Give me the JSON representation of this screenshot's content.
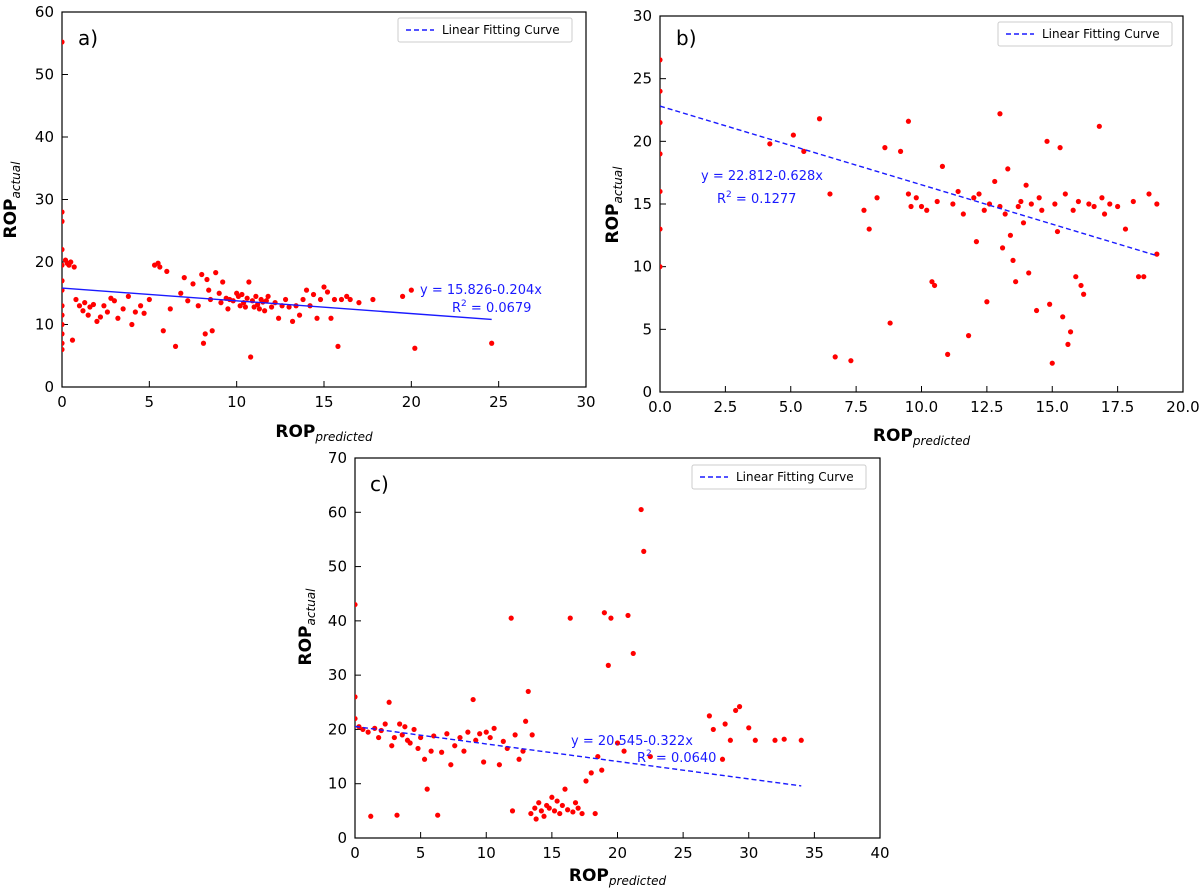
{
  "chart_data": [
    {
      "panel": "a)",
      "type": "scatter",
      "xlabel": "ROP",
      "xlabel_sub": "predicted",
      "ylabel": "ROP",
      "ylabel_sub": "actual",
      "xlim": [
        0,
        30
      ],
      "ylim": [
        0,
        60
      ],
      "xticks": [
        0,
        5,
        10,
        15,
        20,
        25,
        30
      ],
      "yticks": [
        0,
        10,
        20,
        30,
        40,
        50,
        60
      ],
      "legend": "Linear Fitting Curve",
      "equation": "y = 15.826-0.204x",
      "r2_label": "R",
      "r2_value": " = 0.0679",
      "fit": {
        "intercept": 15.826,
        "slope": -0.204,
        "x_end": 24.6
      },
      "colors": {
        "points": "#ff0000",
        "line": "#1a1aff"
      },
      "points": [
        [
          0,
          55.2
        ],
        [
          0,
          28
        ],
        [
          0,
          26.5
        ],
        [
          0,
          22
        ],
        [
          0,
          19.5
        ],
        [
          0,
          17
        ],
        [
          0,
          15.5
        ],
        [
          0,
          13
        ],
        [
          0,
          11.5
        ],
        [
          0,
          10
        ],
        [
          0,
          8.5
        ],
        [
          0,
          7
        ],
        [
          0,
          6
        ],
        [
          0.2,
          20.3
        ],
        [
          0.3,
          19.8
        ],
        [
          0.4,
          19.5
        ],
        [
          0.5,
          20
        ],
        [
          0.7,
          19.2
        ],
        [
          0.6,
          7.5
        ],
        [
          0.8,
          14
        ],
        [
          1,
          13
        ],
        [
          1.2,
          12.2
        ],
        [
          1.3,
          13.5
        ],
        [
          1.5,
          11.5
        ],
        [
          1.6,
          12.8
        ],
        [
          1.8,
          13.2
        ],
        [
          2,
          10.5
        ],
        [
          2.2,
          11.2
        ],
        [
          2.4,
          13
        ],
        [
          2.6,
          12
        ],
        [
          2.8,
          14.2
        ],
        [
          3,
          13.8
        ],
        [
          3.2,
          11
        ],
        [
          3.5,
          12.5
        ],
        [
          3.8,
          14.5
        ],
        [
          4,
          10
        ],
        [
          4.2,
          12
        ],
        [
          4.5,
          13
        ],
        [
          4.7,
          11.8
        ],
        [
          5,
          14
        ],
        [
          5.3,
          19.5
        ],
        [
          5.5,
          19.8
        ],
        [
          5.6,
          19.2
        ],
        [
          5.8,
          9
        ],
        [
          6,
          18.5
        ],
        [
          6.2,
          12.5
        ],
        [
          6.5,
          6.5
        ],
        [
          6.8,
          15
        ],
        [
          7,
          17.5
        ],
        [
          7.2,
          13.8
        ],
        [
          7.5,
          16.5
        ],
        [
          7.8,
          13
        ],
        [
          8,
          18
        ],
        [
          8.1,
          7
        ],
        [
          8.2,
          8.5
        ],
        [
          8.3,
          17.2
        ],
        [
          8.4,
          15.5
        ],
        [
          8.5,
          14
        ],
        [
          8.6,
          9
        ],
        [
          8.8,
          18.3
        ],
        [
          9,
          15
        ],
        [
          9.1,
          13.5
        ],
        [
          9.2,
          16.8
        ],
        [
          9.4,
          14.2
        ],
        [
          9.5,
          12.5
        ],
        [
          9.6,
          14
        ],
        [
          9.8,
          13.8
        ],
        [
          10,
          15
        ],
        [
          10.1,
          14.5
        ],
        [
          10.2,
          13
        ],
        [
          10.3,
          14.8
        ],
        [
          10.4,
          13.5
        ],
        [
          10.5,
          12.8
        ],
        [
          10.6,
          14.2
        ],
        [
          10.7,
          16.8
        ],
        [
          10.8,
          4.8
        ],
        [
          10.9,
          13.8
        ],
        [
          11,
          12.8
        ],
        [
          11.1,
          14.5
        ],
        [
          11.2,
          13.2
        ],
        [
          11.3,
          12.5
        ],
        [
          11.4,
          14
        ],
        [
          11.5,
          13.6
        ],
        [
          11.6,
          12.2
        ],
        [
          11.7,
          13.8
        ],
        [
          11.8,
          14.5
        ],
        [
          12,
          12.8
        ],
        [
          12.2,
          13.5
        ],
        [
          12.4,
          11
        ],
        [
          12.6,
          13
        ],
        [
          12.8,
          14
        ],
        [
          13,
          12.8
        ],
        [
          13.2,
          10.5
        ],
        [
          13.4,
          13
        ],
        [
          13.6,
          11.5
        ],
        [
          13.8,
          14
        ],
        [
          14,
          15.5
        ],
        [
          14.2,
          13
        ],
        [
          14.4,
          14.8
        ],
        [
          14.6,
          11
        ],
        [
          14.8,
          14
        ],
        [
          15,
          16
        ],
        [
          15.2,
          15.2
        ],
        [
          15.4,
          11
        ],
        [
          15.6,
          14
        ],
        [
          15.8,
          6.5
        ],
        [
          16,
          14
        ],
        [
          16.3,
          14.5
        ],
        [
          16.5,
          14
        ],
        [
          17,
          13.5
        ],
        [
          17.8,
          14
        ],
        [
          19.5,
          14.5
        ],
        [
          20,
          15.5
        ],
        [
          20.2,
          6.2
        ],
        [
          24.6,
          7
        ]
      ]
    },
    {
      "panel": "b)",
      "type": "scatter",
      "xlabel": "ROP",
      "xlabel_sub": "predicted",
      "ylabel": "ROP",
      "ylabel_sub": "actual",
      "xlim": [
        0,
        20
      ],
      "ylim": [
        0,
        30
      ],
      "xticks": [
        0,
        2.5,
        5,
        7.5,
        10,
        12.5,
        15,
        17.5,
        20
      ],
      "xtick_labels": [
        "0.0",
        "2.5",
        "5.0",
        "7.5",
        "10.0",
        "12.5",
        "15.0",
        "17.5",
        "20.0"
      ],
      "yticks": [
        0,
        5,
        10,
        15,
        20,
        25,
        30
      ],
      "legend": "Linear Fitting Curve",
      "equation": "y = 22.812-0.628x",
      "r2_label": "R",
      "r2_value": " = 0.1277",
      "fit": {
        "intercept": 22.812,
        "slope": -0.628,
        "x_end": 19
      },
      "colors": {
        "points": "#ff0000",
        "line": "#1a1aff"
      },
      "points": [
        [
          0,
          26.5
        ],
        [
          0,
          24
        ],
        [
          0,
          21.5
        ],
        [
          0,
          19
        ],
        [
          0,
          16
        ],
        [
          0,
          13
        ],
        [
          0,
          10
        ],
        [
          4.2,
          19.8
        ],
        [
          5.1,
          20.5
        ],
        [
          5.5,
          19.2
        ],
        [
          6.1,
          21.8
        ],
        [
          6.5,
          15.8
        ],
        [
          6.7,
          2.8
        ],
        [
          7.3,
          2.5
        ],
        [
          7.8,
          14.5
        ],
        [
          8,
          13
        ],
        [
          8.3,
          15.5
        ],
        [
          8.6,
          19.5
        ],
        [
          8.8,
          5.5
        ],
        [
          9.2,
          19.2
        ],
        [
          9.5,
          21.6
        ],
        [
          9.5,
          15.8
        ],
        [
          9.6,
          14.8
        ],
        [
          9.8,
          15.5
        ],
        [
          10,
          14.8
        ],
        [
          10.2,
          14.5
        ],
        [
          10.4,
          8.8
        ],
        [
          10.5,
          8.5
        ],
        [
          10.6,
          15.2
        ],
        [
          10.8,
          18
        ],
        [
          11,
          3
        ],
        [
          11.2,
          15
        ],
        [
          11.4,
          16
        ],
        [
          11.6,
          14.2
        ],
        [
          11.8,
          4.5
        ],
        [
          12,
          15.5
        ],
        [
          12.1,
          12
        ],
        [
          12.2,
          15.8
        ],
        [
          12.4,
          14.5
        ],
        [
          12.5,
          7.2
        ],
        [
          12.6,
          15
        ],
        [
          12.8,
          16.8
        ],
        [
          13,
          22.2
        ],
        [
          13,
          14.8
        ],
        [
          13.1,
          11.5
        ],
        [
          13.2,
          14.2
        ],
        [
          13.3,
          17.8
        ],
        [
          13.4,
          12.5
        ],
        [
          13.5,
          10.5
        ],
        [
          13.6,
          8.8
        ],
        [
          13.7,
          14.8
        ],
        [
          13.8,
          15.2
        ],
        [
          13.9,
          13.5
        ],
        [
          14,
          16.5
        ],
        [
          14.1,
          9.5
        ],
        [
          14.2,
          15
        ],
        [
          14.4,
          6.5
        ],
        [
          14.5,
          15.5
        ],
        [
          14.6,
          14.5
        ],
        [
          14.8,
          20
        ],
        [
          14.9,
          7
        ],
        [
          15,
          2.3
        ],
        [
          15.1,
          15
        ],
        [
          15.2,
          12.8
        ],
        [
          15.3,
          19.5
        ],
        [
          15.4,
          6
        ],
        [
          15.5,
          15.8
        ],
        [
          15.6,
          3.8
        ],
        [
          15.7,
          4.8
        ],
        [
          15.8,
          14.5
        ],
        [
          15.9,
          9.2
        ],
        [
          16,
          15.2
        ],
        [
          16.1,
          8.5
        ],
        [
          16.2,
          7.8
        ],
        [
          16.4,
          15
        ],
        [
          16.6,
          14.8
        ],
        [
          16.8,
          21.2
        ],
        [
          16.9,
          15.5
        ],
        [
          17,
          14.2
        ],
        [
          17.2,
          15
        ],
        [
          17.5,
          14.8
        ],
        [
          17.8,
          13
        ],
        [
          18.1,
          15.2
        ],
        [
          18.3,
          9.2
        ],
        [
          18.5,
          9.2
        ],
        [
          18.7,
          15.8
        ],
        [
          19,
          11
        ],
        [
          19,
          15
        ]
      ]
    },
    {
      "panel": "c)",
      "type": "scatter",
      "xlabel": "ROP",
      "xlabel_sub": "predicted",
      "ylabel": "ROP",
      "ylabel_sub": "actual",
      "xlim": [
        0,
        40
      ],
      "ylim": [
        0,
        70
      ],
      "xticks": [
        0,
        5,
        10,
        15,
        20,
        25,
        30,
        35,
        40
      ],
      "yticks": [
        0,
        10,
        20,
        30,
        40,
        50,
        60,
        70
      ],
      "legend": "Linear Fitting Curve",
      "equation": "y = 20.545-0.322x",
      "r2_label": "R",
      "r2_value": " = 0.0640",
      "fit": {
        "intercept": 20.545,
        "slope": -0.322,
        "x_end": 34
      },
      "colors": {
        "points": "#ff0000",
        "line": "#1a1aff"
      },
      "points": [
        [
          0,
          43
        ],
        [
          0,
          26
        ],
        [
          0,
          22
        ],
        [
          0.3,
          20.5
        ],
        [
          0.6,
          20
        ],
        [
          1,
          19.5
        ],
        [
          1.2,
          4
        ],
        [
          1.5,
          20.2
        ],
        [
          1.8,
          18.5
        ],
        [
          2,
          19.8
        ],
        [
          2.3,
          21
        ],
        [
          2.6,
          25
        ],
        [
          2.8,
          17
        ],
        [
          3,
          18.5
        ],
        [
          3.2,
          4.2
        ],
        [
          3.4,
          21
        ],
        [
          3.6,
          19
        ],
        [
          3.8,
          20.5
        ],
        [
          4,
          18
        ],
        [
          4.2,
          17.5
        ],
        [
          4.5,
          20
        ],
        [
          4.8,
          16.5
        ],
        [
          5,
          18.5
        ],
        [
          5.3,
          14.5
        ],
        [
          5.5,
          9
        ],
        [
          5.8,
          16
        ],
        [
          6,
          18.8
        ],
        [
          6.3,
          4.2
        ],
        [
          6.6,
          15.8
        ],
        [
          7,
          19.2
        ],
        [
          7.3,
          13.5
        ],
        [
          7.6,
          17
        ],
        [
          8,
          18.5
        ],
        [
          8.3,
          16
        ],
        [
          8.6,
          19.5
        ],
        [
          9,
          25.5
        ],
        [
          9.2,
          18
        ],
        [
          9.5,
          19.2
        ],
        [
          9.8,
          14
        ],
        [
          10,
          19.5
        ],
        [
          10.3,
          18.5
        ],
        [
          10.6,
          20.2
        ],
        [
          11,
          13.5
        ],
        [
          11.3,
          17.8
        ],
        [
          11.6,
          16.5
        ],
        [
          11.9,
          40.5
        ],
        [
          12,
          5
        ],
        [
          12.2,
          19
        ],
        [
          12.5,
          14.5
        ],
        [
          12.8,
          16
        ],
        [
          13,
          21.5
        ],
        [
          13.2,
          27
        ],
        [
          13.4,
          4.5
        ],
        [
          13.5,
          19
        ],
        [
          13.7,
          5.5
        ],
        [
          13.8,
          3.5
        ],
        [
          14,
          6.5
        ],
        [
          14.2,
          5
        ],
        [
          14.4,
          4
        ],
        [
          14.6,
          6
        ],
        [
          14.8,
          5.5
        ],
        [
          15,
          7.5
        ],
        [
          15.2,
          5
        ],
        [
          15.4,
          6.8
        ],
        [
          15.6,
          4.5
        ],
        [
          15.8,
          6
        ],
        [
          16,
          9
        ],
        [
          16.2,
          5.2
        ],
        [
          16.4,
          40.5
        ],
        [
          16.6,
          4.8
        ],
        [
          16.8,
          6.5
        ],
        [
          17,
          5.5
        ],
        [
          17.3,
          4.5
        ],
        [
          17.6,
          10.5
        ],
        [
          18,
          12
        ],
        [
          18.3,
          4.5
        ],
        [
          18.5,
          15
        ],
        [
          18.8,
          12.5
        ],
        [
          19,
          41.5
        ],
        [
          19.3,
          31.8
        ],
        [
          19.5,
          40.5
        ],
        [
          20,
          17.5
        ],
        [
          20.5,
          16
        ],
        [
          20.8,
          41
        ],
        [
          21.2,
          34
        ],
        [
          21.8,
          60.5
        ],
        [
          22,
          52.8
        ],
        [
          22.5,
          15
        ],
        [
          27,
          22.5
        ],
        [
          27.3,
          20
        ],
        [
          28,
          14.5
        ],
        [
          28.2,
          21
        ],
        [
          28.6,
          18
        ],
        [
          29,
          23.5
        ],
        [
          29.3,
          24.2
        ],
        [
          30,
          20.3
        ],
        [
          30.5,
          18
        ],
        [
          32,
          18
        ],
        [
          32.7,
          18.2
        ],
        [
          34,
          18
        ]
      ]
    }
  ]
}
